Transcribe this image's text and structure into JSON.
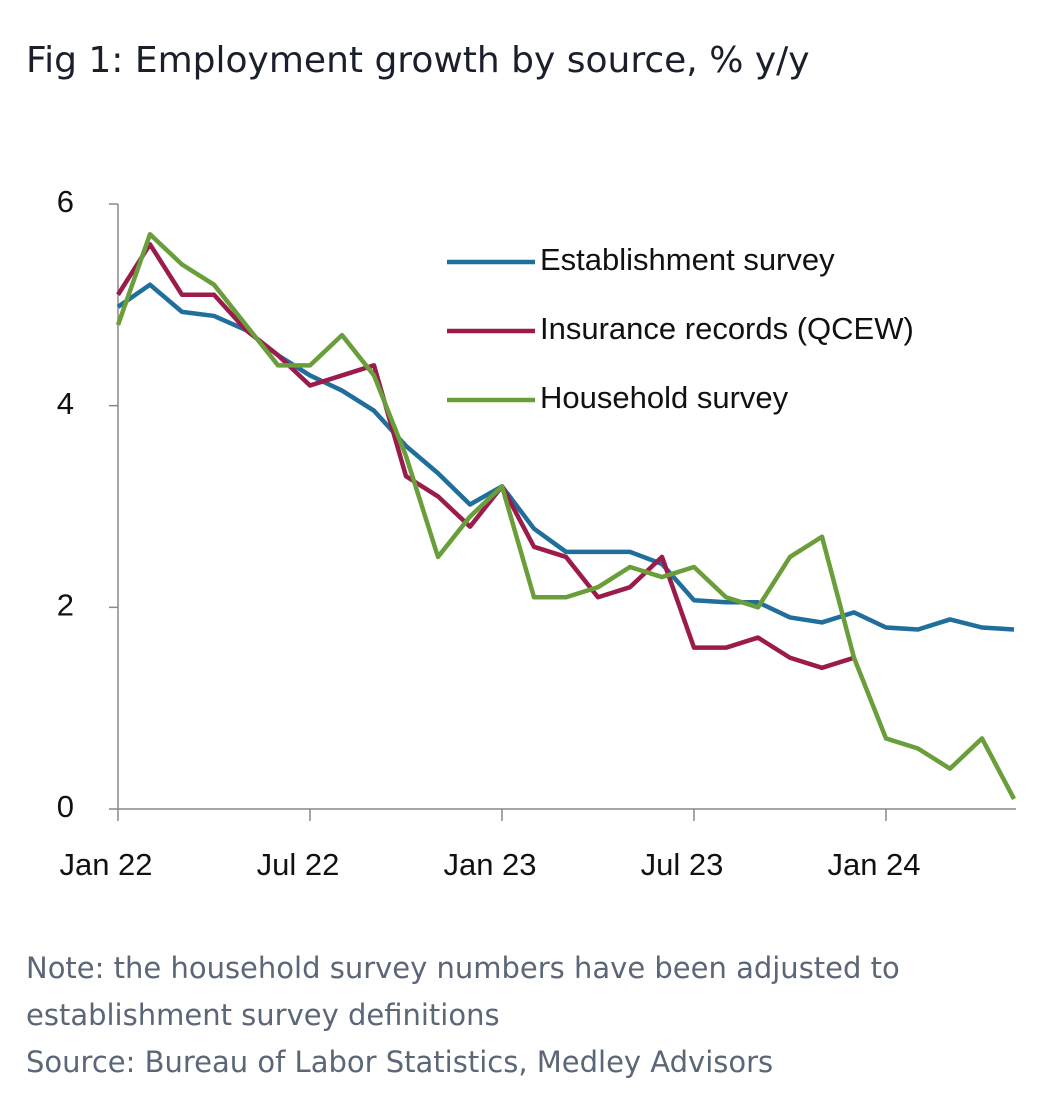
{
  "chart_data": {
    "type": "line",
    "title": "Fig 1: Employment growth by source, % y/y",
    "categories": [
      "Jan 22",
      null,
      null,
      null,
      null,
      null,
      "Jul 22",
      null,
      null,
      null,
      null,
      null,
      "Jan 23",
      null,
      null,
      null,
      null,
      null,
      "Jul 23",
      null,
      null,
      null,
      null,
      null,
      "Jan 24",
      null,
      null,
      null,
      null
    ],
    "series": [
      {
        "name": "Establishment survey",
        "color": "#1f6e9c",
        "values": [
          4.98,
          5.2,
          4.93,
          4.89,
          4.75,
          4.5,
          4.3,
          4.15,
          3.95,
          3.6,
          3.33,
          3.02,
          3.2,
          2.78,
          2.55,
          2.55,
          2.55,
          2.43,
          2.07,
          2.05,
          2.05,
          1.9,
          1.85,
          1.95,
          1.8,
          1.78,
          1.88,
          1.8,
          1.78
        ]
      },
      {
        "name": "Insurance records (QCEW)",
        "color": "#9b1b4b",
        "values": [
          5.1,
          5.6,
          5.1,
          5.1,
          4.75,
          4.5,
          4.2,
          4.3,
          4.4,
          3.3,
          3.1,
          2.8,
          3.2,
          2.6,
          2.5,
          2.1,
          2.2,
          2.5,
          1.6,
          1.6,
          1.7,
          1.5,
          1.4,
          1.5,
          null,
          null,
          null,
          null,
          null
        ]
      },
      {
        "name": "Household survey",
        "color": "#6a9e3a",
        "values": [
          4.8,
          5.7,
          5.4,
          5.2,
          4.8,
          4.4,
          4.4,
          4.7,
          4.3,
          3.5,
          2.5,
          2.9,
          3.2,
          2.1,
          2.1,
          2.2,
          2.4,
          2.3,
          2.4,
          2.1,
          2.0,
          2.5,
          2.7,
          1.5,
          0.7,
          0.6,
          0.4,
          0.7,
          0.1
        ]
      }
    ],
    "ylim": [
      0,
      6
    ],
    "yticks": [
      0,
      2,
      4,
      6
    ],
    "note": "Note: the household survey numbers have been adjusted to establishment survey definitions",
    "source": "Source: Bureau of Labor Statistics, Medley Advisors"
  }
}
